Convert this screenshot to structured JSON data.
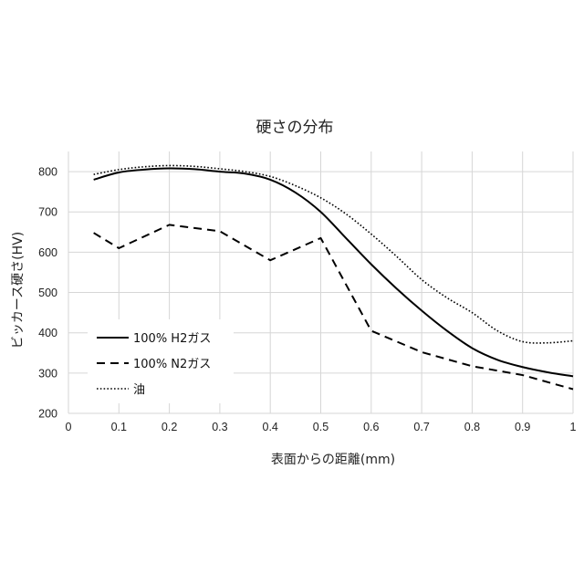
{
  "chart_data": {
    "type": "line",
    "title": "硬さの分布",
    "xlabel": "表面からの距離(mm)",
    "ylabel": "ビッカース硬さ(HV)",
    "xlim": [
      0,
      1
    ],
    "ylim": [
      200,
      850
    ],
    "x_ticks": [
      "0",
      "0.1",
      "0.2",
      "0.3",
      "0.4",
      "0.5",
      "0.6",
      "0.7",
      "0.8",
      "0.9",
      "1"
    ],
    "y_ticks": [
      "200",
      "300",
      "400",
      "500",
      "600",
      "700",
      "800"
    ],
    "grid": true,
    "legend": "bottom-left",
    "series": [
      {
        "name": "100% H2ガス",
        "style": "solid",
        "color": "#000000",
        "x": [
          0.05,
          0.1,
          0.15,
          0.2,
          0.25,
          0.3,
          0.35,
          0.4,
          0.45,
          0.5,
          0.55,
          0.6,
          0.65,
          0.7,
          0.75,
          0.8,
          0.85,
          0.9,
          0.95,
          1.0
        ],
        "y": [
          780,
          798,
          805,
          808,
          806,
          800,
          795,
          780,
          748,
          700,
          635,
          570,
          510,
          455,
          405,
          362,
          333,
          315,
          302,
          292
        ]
      },
      {
        "name": "100% N2ガス",
        "style": "dashed",
        "color": "#000000",
        "x": [
          0.05,
          0.1,
          0.2,
          0.3,
          0.4,
          0.5,
          0.6,
          0.7,
          0.8,
          0.9,
          1.0
        ],
        "y": [
          648,
          610,
          668,
          652,
          580,
          635,
          405,
          352,
          317,
          295,
          260
        ]
      },
      {
        "name": "油",
        "style": "dotted",
        "color": "#000000",
        "x": [
          0.05,
          0.1,
          0.15,
          0.2,
          0.25,
          0.3,
          0.35,
          0.4,
          0.45,
          0.5,
          0.55,
          0.6,
          0.65,
          0.7,
          0.75,
          0.8,
          0.85,
          0.9,
          0.95,
          1.0
        ],
        "y": [
          793,
          805,
          812,
          815,
          813,
          807,
          800,
          788,
          765,
          735,
          695,
          645,
          590,
          532,
          487,
          450,
          405,
          378,
          375,
          380
        ]
      }
    ]
  }
}
